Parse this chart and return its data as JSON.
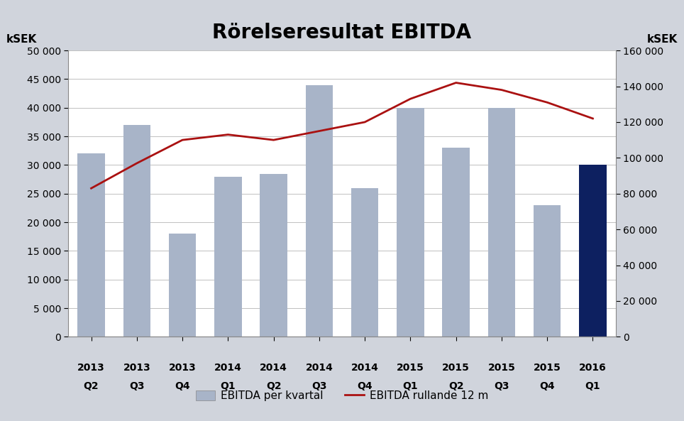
{
  "title": "Rörelseresultat EBITDA",
  "title_fontsize": 20,
  "background_color": "#d0d4dc",
  "plot_background": "#ffffff",
  "categories_line1": [
    "2013",
    "2013",
    "2013",
    "2014",
    "2014",
    "2014",
    "2014",
    "2015",
    "2015",
    "2015",
    "2015",
    "2016"
  ],
  "categories_line2": [
    "Q2",
    "Q3",
    "Q4",
    "Q1",
    "Q2",
    "Q3",
    "Q4",
    "Q1",
    "Q2",
    "Q3",
    "Q4",
    "Q1"
  ],
  "bar_values": [
    32000,
    37000,
    18000,
    28000,
    28500,
    44000,
    26000,
    40000,
    33000,
    40000,
    23000,
    30000
  ],
  "bar_colors_light": "#a8b4c8",
  "bar_color_dark": "#0d2060",
  "line_values": [
    83000,
    97000,
    110000,
    113000,
    110000,
    115000,
    120000,
    133000,
    142000,
    138000,
    131000,
    122000
  ],
  "line_color": "#aa1111",
  "line_width": 2.0,
  "left_ylim": [
    0,
    50000
  ],
  "right_ylim": [
    0,
    160000
  ],
  "left_yticks": [
    0,
    5000,
    10000,
    15000,
    20000,
    25000,
    30000,
    35000,
    40000,
    45000,
    50000
  ],
  "right_yticks": [
    0,
    20000,
    40000,
    60000,
    80000,
    100000,
    120000,
    140000,
    160000
  ],
  "left_ylabel": "kSEK",
  "right_ylabel": "kSEK",
  "legend_bar_label": "EBITDA per kvartal",
  "legend_line_label": "EBITDA rullande 12 m",
  "ylabel_fontsize": 11,
  "tick_fontsize": 10,
  "legend_fontsize": 11,
  "bar_width": 0.6
}
